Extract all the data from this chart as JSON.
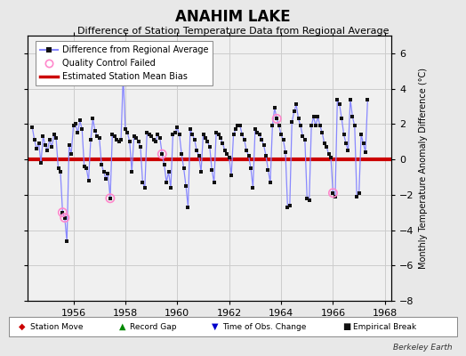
{
  "title": "ANAHIM LAKE",
  "subtitle": "Difference of Station Temperature Data from Regional Average",
  "ylabel": "Monthly Temperature Anomaly Difference (°C)",
  "bias_line": 0.0,
  "fig_bg_color": "#e8e8e8",
  "plot_bg_color": "#f0f0f0",
  "line_color": "#8888ff",
  "marker_color": "#111111",
  "bias_color": "#cc0000",
  "qc_color": "#ff88cc",
  "watermark": "Berkeley Earth",
  "xlim": [
    1954.25,
    1968.25
  ],
  "ylim": [
    -8,
    7
  ],
  "yticks": [
    -8,
    -6,
    -4,
    -2,
    0,
    2,
    4,
    6
  ],
  "xticks": [
    1956,
    1958,
    1960,
    1962,
    1964,
    1966,
    1968
  ],
  "t_start": 1954.417,
  "t_step": 0.08333,
  "vals": [
    1.8,
    1.1,
    0.6,
    0.9,
    -0.2,
    1.3,
    0.8,
    0.5,
    1.1,
    0.7,
    1.4,
    1.2,
    -0.5,
    -0.7,
    -3.0,
    -3.3,
    -4.65,
    0.8,
    0.3,
    1.9,
    2.0,
    1.5,
    2.2,
    1.7,
    -0.4,
    -0.5,
    -1.2,
    1.1,
    2.3,
    1.6,
    1.3,
    1.2,
    -0.3,
    -0.7,
    -1.1,
    -0.8,
    -2.2,
    1.4,
    1.3,
    1.1,
    1.0,
    1.1,
    4.75,
    1.7,
    1.5,
    1.0,
    -0.7,
    1.3,
    1.2,
    1.0,
    0.7,
    -1.3,
    -1.6,
    1.5,
    1.4,
    1.3,
    1.1,
    1.0,
    1.4,
    1.2,
    0.3,
    -0.3,
    -1.3,
    -0.7,
    -1.6,
    1.4,
    1.5,
    1.8,
    1.4,
    0.3,
    -0.5,
    -1.5,
    -2.7,
    1.7,
    1.4,
    1.1,
    0.5,
    0.2,
    -0.7,
    1.4,
    1.2,
    1.0,
    0.7,
    -0.6,
    -1.3,
    1.5,
    1.4,
    1.2,
    0.9,
    0.5,
    0.3,
    0.1,
    -0.9,
    1.4,
    1.7,
    1.9,
    1.9,
    1.4,
    1.1,
    0.5,
    0.2,
    -0.5,
    -1.6,
    1.7,
    1.5,
    1.4,
    1.1,
    0.8,
    0.2,
    -0.6,
    -1.3,
    1.9,
    2.9,
    2.3,
    1.9,
    1.4,
    1.1,
    0.4,
    -2.7,
    -2.6,
    2.1,
    2.7,
    3.1,
    2.3,
    1.9,
    1.3,
    1.1,
    -2.2,
    -2.3,
    1.9,
    2.4,
    1.9,
    2.4,
    1.9,
    1.5,
    0.9,
    0.7,
    0.3,
    0.1,
    -1.9,
    -2.1,
    3.4,
    3.1,
    2.3,
    1.4,
    0.9,
    0.5,
    3.4,
    2.4,
    1.9,
    -2.1,
    -1.9,
    1.4,
    0.9,
    0.4,
    3.4
  ],
  "qc_indices": [
    14,
    15,
    36,
    60,
    113,
    139
  ]
}
